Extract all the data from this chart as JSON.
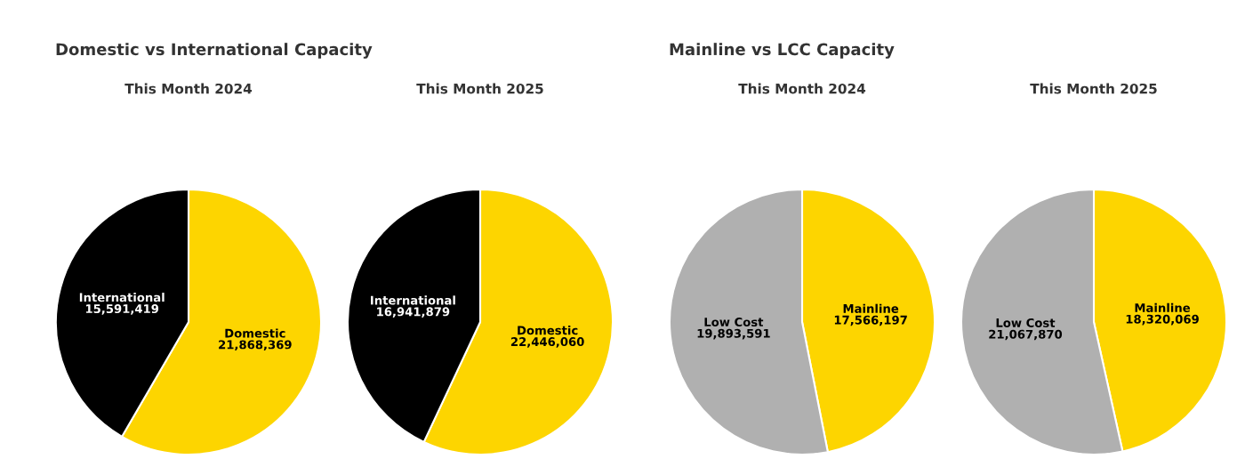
{
  "chart_data": [
    {
      "type": "pie",
      "title": "Domestic vs International Capacity",
      "subtitle": "This Month 2024",
      "categories": [
        "Domestic",
        "International"
      ],
      "values": [
        21868369,
        15591419
      ],
      "value_labels": [
        "21,868,369",
        "15,591,419"
      ],
      "colors": [
        "#fdd500",
        "#000000"
      ]
    },
    {
      "type": "pie",
      "subtitle": "This Month 2025",
      "categories": [
        "Domestic",
        "International"
      ],
      "values": [
        22446060,
        16941879
      ],
      "value_labels": [
        "22,446,060",
        "16,941,879"
      ],
      "colors": [
        "#fdd500",
        "#000000"
      ]
    },
    {
      "type": "pie",
      "title": "Mainline vs LCC Capacity",
      "subtitle": "This Month 2024",
      "categories": [
        "Mainline",
        "Low Cost"
      ],
      "values": [
        17566197,
        19893591
      ],
      "value_labels": [
        "17,566,197",
        "19,893,591"
      ],
      "colors": [
        "#fdd500",
        "#b0b0b0"
      ]
    },
    {
      "type": "pie",
      "subtitle": "This Month 2025",
      "categories": [
        "Mainline",
        "Low Cost"
      ],
      "values": [
        18320069,
        21067870
      ],
      "value_labels": [
        "18,320,069",
        "21,067,870"
      ],
      "colors": [
        "#fdd500",
        "#b0b0b0"
      ]
    }
  ]
}
